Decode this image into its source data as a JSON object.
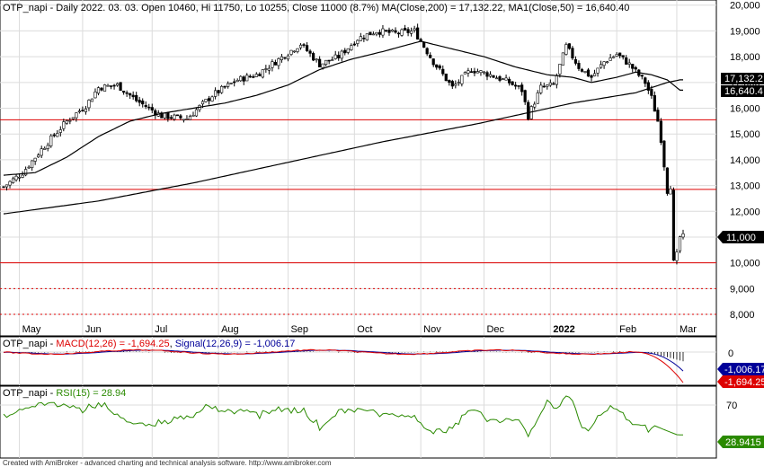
{
  "chart_data": {
    "type": "candlestick",
    "symbol": "OTP_napi",
    "price_panel": {
      "title_prefix": "OTP_napi - Daily 2022. 03. 03. Open 10460, Hi 11750, Lo 10255, Close 11000 (8.7%)",
      "ma200_label": "MA(Close,200) = 17,132.22",
      "ma50_label": "MA1(Close,50) = 16,640.40",
      "ylim": [
        7200,
        20200
      ],
      "yticks": [
        "8,000",
        "9,000",
        "10,000",
        "11,000",
        "12,000",
        "13,000",
        "14,000",
        "15,000",
        "16,000",
        "17,000",
        "18,000",
        "19,000",
        "20,000"
      ],
      "ytick_values": [
        8000,
        9000,
        10000,
        11000,
        12000,
        13000,
        14000,
        15000,
        16000,
        17000,
        18000,
        19000,
        20000
      ],
      "x_months": [
        {
          "label": "May",
          "i": 5
        },
        {
          "label": "Jun",
          "i": 25
        },
        {
          "label": "Jul",
          "i": 47
        },
        {
          "label": "Aug",
          "i": 68
        },
        {
          "label": "Sep",
          "i": 90
        },
        {
          "label": "Oct",
          "i": 111
        },
        {
          "label": "Nov",
          "i": 132
        },
        {
          "label": "Dec",
          "i": 152
        },
        {
          "label": "2022",
          "i": 173,
          "bold": true
        },
        {
          "label": "Feb",
          "i": 194
        },
        {
          "label": "Mar",
          "i": 213
        }
      ],
      "x_count": 216,
      "close_profile": [
        [
          0,
          12950
        ],
        [
          6,
          13500
        ],
        [
          12,
          14400
        ],
        [
          20,
          15500
        ],
        [
          26,
          16100
        ],
        [
          30,
          16800
        ],
        [
          36,
          16900
        ],
        [
          42,
          16300
        ],
        [
          50,
          15700
        ],
        [
          58,
          15600
        ],
        [
          66,
          16500
        ],
        [
          74,
          17100
        ],
        [
          80,
          17300
        ],
        [
          86,
          17800
        ],
        [
          94,
          18500
        ],
        [
          100,
          17700
        ],
        [
          106,
          18000
        ],
        [
          112,
          18700
        ],
        [
          118,
          19000
        ],
        [
          124,
          18900
        ],
        [
          130,
          19000
        ],
        [
          136,
          17800
        ],
        [
          142,
          16800
        ],
        [
          148,
          17500
        ],
        [
          154,
          17300
        ],
        [
          160,
          17000
        ],
        [
          164,
          16700
        ],
        [
          166,
          15700
        ],
        [
          170,
          16800
        ],
        [
          174,
          16900
        ],
        [
          178,
          18400
        ],
        [
          182,
          17600
        ],
        [
          186,
          17200
        ],
        [
          190,
          17800
        ],
        [
          194,
          18100
        ],
        [
          198,
          17700
        ],
        [
          203,
          17000
        ],
        [
          205,
          16400
        ],
        [
          207,
          15500
        ],
        [
          208,
          14800
        ],
        [
          210,
          12800
        ],
        [
          211,
          13000
        ],
        [
          212,
          10000
        ],
        [
          213,
          10300
        ],
        [
          214,
          11000
        ]
      ],
      "ma200_profile": [
        [
          0,
          11900
        ],
        [
          30,
          12400
        ],
        [
          60,
          13100
        ],
        [
          90,
          13900
        ],
        [
          120,
          14700
        ],
        [
          150,
          15400
        ],
        [
          180,
          16200
        ],
        [
          200,
          16600
        ],
        [
          210,
          17000
        ],
        [
          214,
          17100
        ]
      ],
      "ma50_profile": [
        [
          0,
          13400
        ],
        [
          10,
          13500
        ],
        [
          20,
          14100
        ],
        [
          30,
          14900
        ],
        [
          40,
          15500
        ],
        [
          50,
          15800
        ],
        [
          60,
          16000
        ],
        [
          70,
          16200
        ],
        [
          80,
          16500
        ],
        [
          90,
          16900
        ],
        [
          100,
          17500
        ],
        [
          110,
          17900
        ],
        [
          120,
          18200
        ],
        [
          132,
          18600
        ],
        [
          142,
          18300
        ],
        [
          152,
          18000
        ],
        [
          162,
          17600
        ],
        [
          172,
          17300
        ],
        [
          180,
          17200
        ],
        [
          186,
          17000
        ],
        [
          194,
          17200
        ],
        [
          200,
          17400
        ],
        [
          205,
          17300
        ],
        [
          210,
          17100
        ],
        [
          214,
          16700
        ]
      ],
      "hlines_solid": [
        15550,
        12850,
        10000
      ],
      "hlines_dotted": [
        9000,
        8000
      ],
      "last_close": 11000,
      "last_close_label": "11,000",
      "badge_ma200": "17,132.2",
      "badge_ma50": "16,640.4"
    },
    "macd_panel": {
      "title_prefix": "OTP_napi - ",
      "macd_label": "MACD(12,26) = -1,694.25",
      "signal_label": "Signal(12,26,9) = -1,006.17",
      "ytick": "0",
      "badge_signal": "-1,006.17",
      "badge_macd": "-1,694.25"
    },
    "rsi_panel": {
      "title_prefix": "OTP_napi - ",
      "rsi_label": "RSI(15) = 28.94",
      "ytick": "70",
      "badge": "28.9415"
    },
    "colors": {
      "up": "#ffffff",
      "down": "#000000",
      "ma": "#000000",
      "support": "#dd0000",
      "macd": "#dd0000",
      "signal": "#000099",
      "rsi": "#2a8a00",
      "grid": "#dcdcdc"
    }
  },
  "footer": "Created with AmiBroker - advanced charting and technical analysis software. http://www.amibroker.com"
}
